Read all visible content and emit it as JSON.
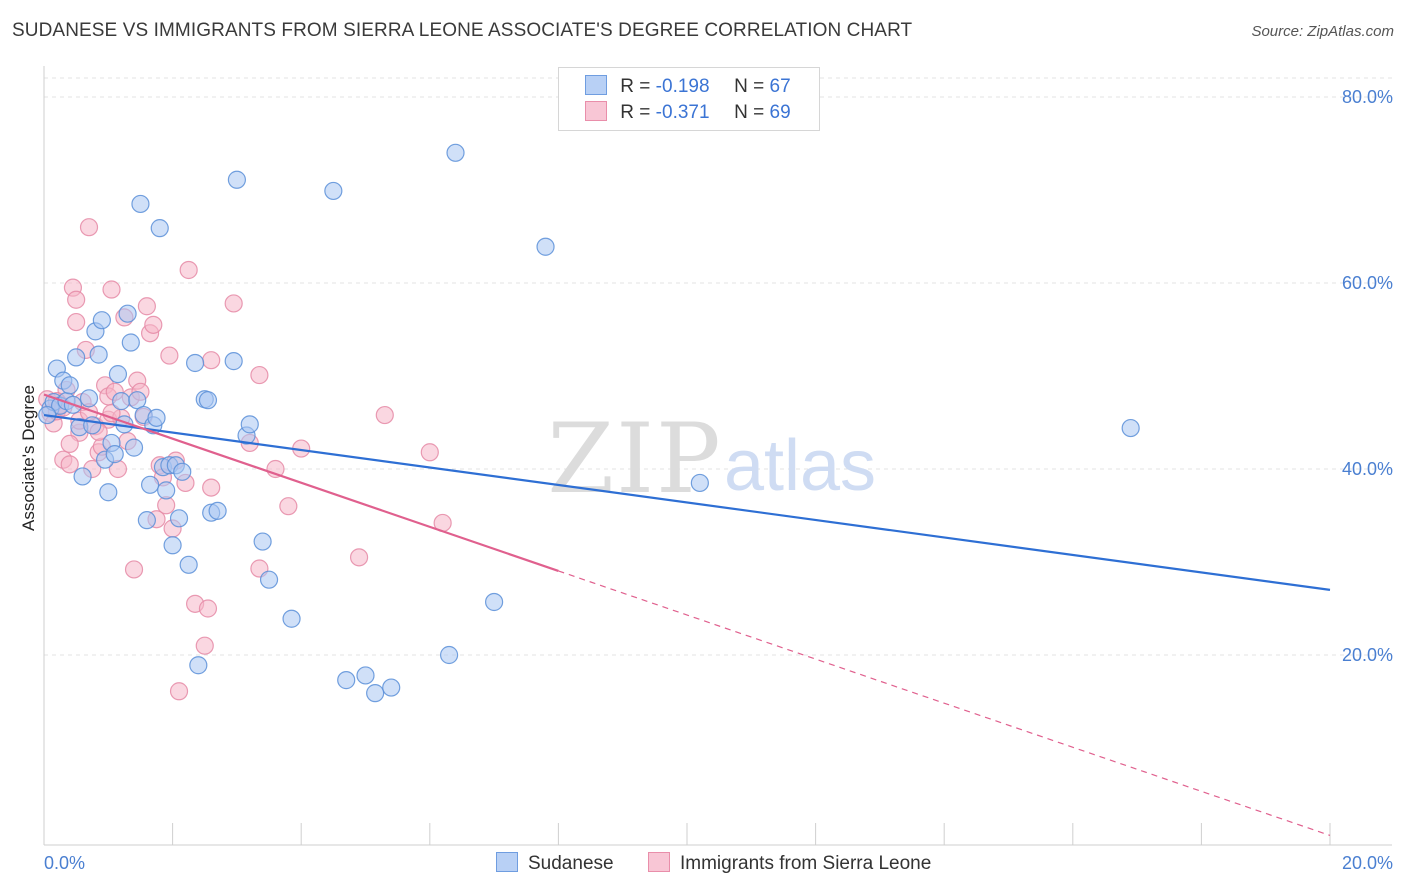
{
  "title": "SUDANESE VS IMMIGRANTS FROM SIERRA LEONE ASSOCIATE'S DEGREE CORRELATION CHART",
  "source": "Source: ZipAtlas.com",
  "watermark": {
    "zip": "ZIP",
    "atlas": "atlas"
  },
  "legend": {
    "rows": [
      {
        "r_label": "R =",
        "r_value": "-0.198",
        "n_label": "N =",
        "n_value": "67"
      },
      {
        "r_label": "R =",
        "r_value": "-0.371",
        "n_label": "N =",
        "n_value": "69"
      }
    ]
  },
  "bottom_legend": {
    "s1": "Sudanese",
    "s2": "Immigrants from Sierra Leone"
  },
  "colors": {
    "blue_fill": "#a9c6f2",
    "blue_stroke": "#5b8fd8",
    "blue_line": "#2e6fd4",
    "pink_fill": "#f5b6c8",
    "pink_stroke": "#e58aa6",
    "pink_line": "#e0608e",
    "grid": "#e3e3e3",
    "tick_label": "#4a7fd1"
  },
  "chart_data": {
    "type": "scatter",
    "title": "SUDANESE VS IMMIGRANTS FROM SIERRA LEONE ASSOCIATE'S DEGREE CORRELATION CHART",
    "xlabel": "",
    "ylabel": "Associate's Degree",
    "xlim": [
      0,
      20
    ],
    "ylim": [
      0,
      82
    ],
    "x_tick_labels": [
      "0.0%",
      "20.0%"
    ],
    "y_ticks": [
      20,
      40,
      60,
      80
    ],
    "y_tick_labels": [
      "20.0%",
      "40.0%",
      "60.0%",
      "80.0%"
    ],
    "series": [
      {
        "name": "Sudanese",
        "R": -0.198,
        "N": 67,
        "trend": {
          "x": [
            0,
            20
          ],
          "y": [
            45.8,
            27.0
          ],
          "dashed_from": null
        },
        "points": [
          [
            0.1,
            46.5
          ],
          [
            0.15,
            47.2
          ],
          [
            0.2,
            50.8
          ],
          [
            0.25,
            46.8
          ],
          [
            0.3,
            49.5
          ],
          [
            0.35,
            47.3
          ],
          [
            0.4,
            49.0
          ],
          [
            0.45,
            46.9
          ],
          [
            0.5,
            52.0
          ],
          [
            0.55,
            44.5
          ],
          [
            0.6,
            39.2
          ],
          [
            0.7,
            47.6
          ],
          [
            0.75,
            44.7
          ],
          [
            0.8,
            54.8
          ],
          [
            0.85,
            52.3
          ],
          [
            0.9,
            56.0
          ],
          [
            0.95,
            41.0
          ],
          [
            1.0,
            37.5
          ],
          [
            1.05,
            42.8
          ],
          [
            1.1,
            41.6
          ],
          [
            1.15,
            50.2
          ],
          [
            1.2,
            47.3
          ],
          [
            1.25,
            44.8
          ],
          [
            1.3,
            56.7
          ],
          [
            1.35,
            53.6
          ],
          [
            1.4,
            42.3
          ],
          [
            1.45,
            47.4
          ],
          [
            1.5,
            68.5
          ],
          [
            1.55,
            45.8
          ],
          [
            1.6,
            34.5
          ],
          [
            1.65,
            38.3
          ],
          [
            1.7,
            44.7
          ],
          [
            1.75,
            45.5
          ],
          [
            1.8,
            65.9
          ],
          [
            1.85,
            40.2
          ],
          [
            1.9,
            37.7
          ],
          [
            1.95,
            40.4
          ],
          [
            2.0,
            31.8
          ],
          [
            2.05,
            40.4
          ],
          [
            2.1,
            34.7
          ],
          [
            2.15,
            39.7
          ],
          [
            2.25,
            29.7
          ],
          [
            2.35,
            51.4
          ],
          [
            2.4,
            18.9
          ],
          [
            2.5,
            47.5
          ],
          [
            2.55,
            47.4
          ],
          [
            2.6,
            35.3
          ],
          [
            2.7,
            35.5
          ],
          [
            3.0,
            71.1
          ],
          [
            2.95,
            51.6
          ],
          [
            3.15,
            43.6
          ],
          [
            3.2,
            44.8
          ],
          [
            3.4,
            32.2
          ],
          [
            3.5,
            28.1
          ],
          [
            3.85,
            23.9
          ],
          [
            4.5,
            69.9
          ],
          [
            4.7,
            17.3
          ],
          [
            5.0,
            17.8
          ],
          [
            5.15,
            15.9
          ],
          [
            5.4,
            16.5
          ],
          [
            6.3,
            20.0
          ],
          [
            6.4,
            74.0
          ],
          [
            7.0,
            25.7
          ],
          [
            7.8,
            63.9
          ],
          [
            10.2,
            38.5
          ],
          [
            16.9,
            44.4
          ],
          [
            0.05,
            45.8
          ]
        ]
      },
      {
        "name": "Immigrants from Sierra Leone",
        "R": -0.371,
        "N": 69,
        "trend": {
          "x": [
            0,
            20
          ],
          "y": [
            48.0,
            0.6
          ],
          "dashed_from": 8.0
        },
        "points": [
          [
            0.05,
            47.5
          ],
          [
            0.1,
            46.0
          ],
          [
            0.15,
            44.9
          ],
          [
            0.2,
            46.2
          ],
          [
            0.25,
            46.9
          ],
          [
            0.3,
            41.0
          ],
          [
            0.35,
            48.5
          ],
          [
            0.4,
            40.5
          ],
          [
            0.45,
            59.5
          ],
          [
            0.5,
            55.8
          ],
          [
            0.5,
            58.2
          ],
          [
            0.55,
            43.9
          ],
          [
            0.6,
            47.2
          ],
          [
            0.65,
            52.8
          ],
          [
            0.7,
            66.0
          ],
          [
            0.75,
            40.0
          ],
          [
            0.8,
            44.6
          ],
          [
            0.85,
            41.8
          ],
          [
            0.9,
            42.4
          ],
          [
            0.95,
            49.0
          ],
          [
            1.0,
            45.3
          ],
          [
            1.0,
            47.8
          ],
          [
            1.05,
            59.3
          ],
          [
            1.1,
            48.3
          ],
          [
            1.15,
            40.0
          ],
          [
            1.2,
            45.5
          ],
          [
            1.25,
            56.3
          ],
          [
            1.3,
            43.0
          ],
          [
            1.35,
            47.7
          ],
          [
            1.4,
            29.2
          ],
          [
            1.45,
            49.5
          ],
          [
            1.5,
            48.3
          ],
          [
            1.55,
            45.6
          ],
          [
            1.6,
            57.5
          ],
          [
            1.65,
            54.6
          ],
          [
            1.7,
            55.5
          ],
          [
            1.75,
            34.6
          ],
          [
            1.8,
            40.4
          ],
          [
            1.85,
            39.1
          ],
          [
            1.9,
            36.1
          ],
          [
            1.95,
            52.2
          ],
          [
            2.0,
            33.6
          ],
          [
            2.05,
            40.9
          ],
          [
            2.1,
            16.1
          ],
          [
            2.2,
            38.5
          ],
          [
            2.25,
            61.4
          ],
          [
            2.35,
            25.5
          ],
          [
            2.5,
            21.0
          ],
          [
            2.55,
            25.0
          ],
          [
            2.6,
            38.0
          ],
          [
            2.6,
            51.7
          ],
          [
            2.95,
            57.8
          ],
          [
            3.2,
            42.8
          ],
          [
            3.35,
            50.1
          ],
          [
            3.35,
            29.3
          ],
          [
            3.6,
            40.0
          ],
          [
            3.8,
            36.0
          ],
          [
            4.0,
            42.2
          ],
          [
            4.9,
            30.5
          ],
          [
            5.3,
            45.8
          ],
          [
            6.0,
            41.8
          ],
          [
            6.2,
            34.2
          ],
          [
            0.2,
            47.3
          ],
          [
            0.3,
            46.6
          ],
          [
            0.4,
            42.7
          ],
          [
            0.55,
            45.2
          ],
          [
            0.7,
            46.1
          ],
          [
            0.85,
            44.0
          ],
          [
            1.05,
            46.0
          ]
        ]
      }
    ]
  }
}
